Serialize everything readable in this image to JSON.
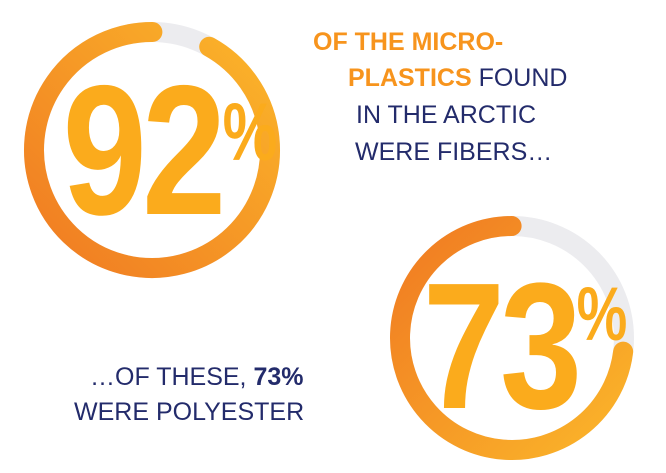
{
  "stats": [
    {
      "value": 92,
      "symbol": "%",
      "caption": [
        [
          {
            "text": "OF THE MICRO-",
            "bold": true
          }
        ],
        [
          {
            "text": "PLASTICS",
            "bold": true
          },
          {
            "text": " FOUND",
            "bold": false
          }
        ],
        [
          {
            "text": "IN THE ARCTIC",
            "bold": false
          }
        ],
        [
          {
            "text": "WERE FIBERS…",
            "bold": false
          }
        ]
      ]
    },
    {
      "value": 73,
      "symbol": "%",
      "caption": [
        [
          {
            "text": "…OF THESE, ",
            "bold": false
          },
          {
            "text": "73%",
            "bold": true
          }
        ],
        [
          {
            "text": "WERE POLYESTER",
            "bold": false
          }
        ]
      ]
    }
  ]
}
